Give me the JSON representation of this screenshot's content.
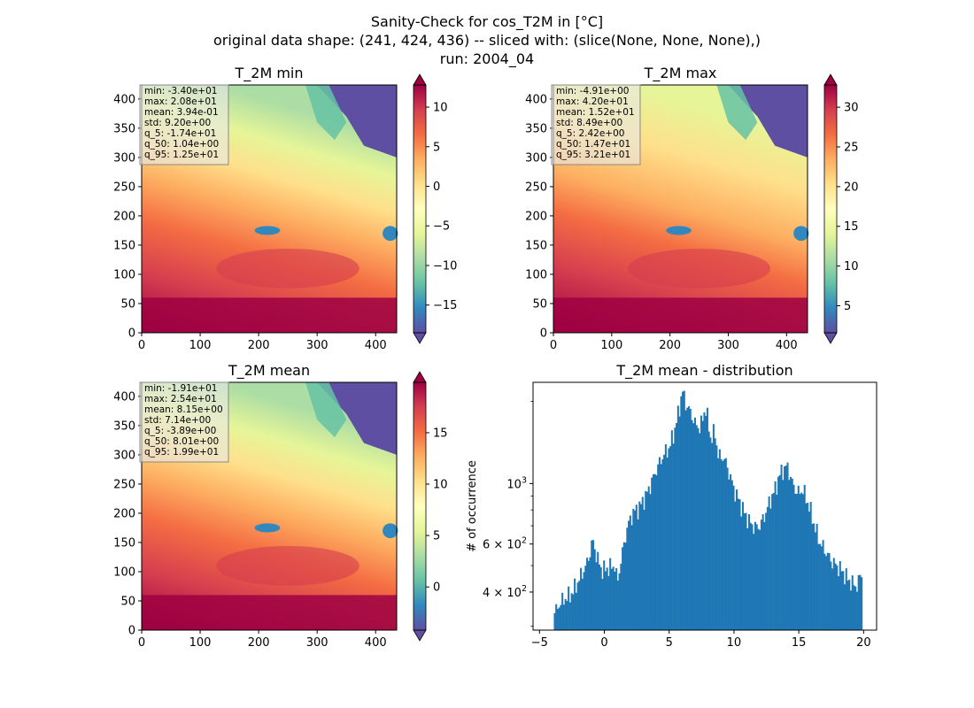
{
  "figure": {
    "title_lines": [
      "Sanity-Check for cos_T2M in [°C]",
      "original data shape: (241, 424, 436) -- sliced with: (slice(None, None, None),)",
      "run: 2004_04"
    ]
  },
  "colormap": {
    "name": "Spectral_r",
    "stops": [
      "#5e4fa2",
      "#3288bd",
      "#66c2a5",
      "#abdda4",
      "#e6f598",
      "#ffffbf",
      "#fee08b",
      "#fdae61",
      "#f46d43",
      "#d53e4f",
      "#9e0142"
    ]
  },
  "panels": [
    {
      "title": "T_2M min",
      "x_ticks": [
        "0",
        "100",
        "200",
        "300",
        "400"
      ],
      "y_ticks": [
        "0",
        "50",
        "100",
        "150",
        "200",
        "250",
        "300",
        "350",
        "400"
      ],
      "stats": [
        "min: -3.40e+01",
        "max: 2.08e+01",
        "mean: 3.94e-01",
        "std: 9.20e+00",
        "q_5: -1.74e+01",
        "q_50: 1.04e+00",
        "q_95: 1.25e+01"
      ],
      "colorbar_ticks": [
        "10",
        "5",
        "0",
        "−5",
        "−10",
        "−15"
      ],
      "colorbar_range": [
        -18.5,
        12.8
      ],
      "colorbar_tick_values": [
        10,
        5,
        0,
        -5,
        -10,
        -15
      ]
    },
    {
      "title": "T_2M max",
      "x_ticks": [
        "0",
        "100",
        "200",
        "300",
        "400"
      ],
      "y_ticks": [
        "0",
        "50",
        "100",
        "150",
        "200",
        "250",
        "300",
        "350",
        "400"
      ],
      "stats": [
        "min: -4.91e+00",
        "max: 4.20e+01",
        "mean: 1.52e+01",
        "std: 8.49e+00",
        "q_5: 2.42e+00",
        "q_50: 1.47e+01",
        "q_95: 3.21e+01"
      ],
      "colorbar_ticks": [
        "30",
        "25",
        "20",
        "15",
        "10",
        "5"
      ],
      "colorbar_range": [
        1.6,
        32.8
      ],
      "colorbar_tick_values": [
        30,
        25,
        20,
        15,
        10,
        5
      ]
    },
    {
      "title": "T_2M mean",
      "x_ticks": [
        "0",
        "100",
        "200",
        "300",
        "400"
      ],
      "y_ticks": [
        "0",
        "50",
        "100",
        "150",
        "200",
        "250",
        "300",
        "350",
        "400"
      ],
      "stats": [
        "min: -1.91e+01",
        "max: 2.54e+01",
        "mean: 8.15e+00",
        "std: 7.14e+00",
        "q_5: -3.89e+00",
        "q_50: 8.01e+00",
        "q_95: 1.99e+01"
      ],
      "colorbar_ticks": [
        "15",
        "10",
        "5",
        "0"
      ],
      "colorbar_range": [
        -4.2,
        19.9
      ],
      "colorbar_tick_values": [
        15,
        10,
        5,
        0
      ]
    }
  ],
  "histogram": {
    "title": "T_2M mean - distribution",
    "ylabel": "# of occurrence",
    "x_ticks": [
      "−5",
      "0",
      "5",
      "10",
      "15",
      "20"
    ],
    "x_tick_values": [
      -5,
      0,
      5,
      10,
      15,
      20
    ],
    "y_tick_labels": [
      {
        "value": 1000,
        "base": "10",
        "exp": "3"
      },
      {
        "value": 600,
        "base": "6 × 10",
        "exp": "2"
      },
      {
        "value": 400,
        "base": "4 × 10",
        "exp": "2"
      }
    ],
    "bar_color": "#1f77b4"
  },
  "chart_data": {
    "type": "bar",
    "title": "T_2M mean - distribution",
    "xlabel": "",
    "ylabel": "# of occurrence",
    "y_scale": "log",
    "xlim": [
      -5.5,
      21
    ],
    "ylim": [
      290,
      2350
    ],
    "grid": false,
    "anchors": [
      [
        -3.9,
        330
      ],
      [
        -3.5,
        360
      ],
      [
        -3.0,
        380
      ],
      [
        -2.6,
        390
      ],
      [
        -2.2,
        420
      ],
      [
        -1.8,
        460
      ],
      [
        -1.4,
        500
      ],
      [
        -1.1,
        560
      ],
      [
        -0.9,
        620
      ],
      [
        -0.6,
        540
      ],
      [
        -0.2,
        480
      ],
      [
        0.3,
        490
      ],
      [
        0.8,
        500
      ],
      [
        1.0,
        430
      ],
      [
        1.4,
        560
      ],
      [
        1.8,
        700
      ],
      [
        2.2,
        780
      ],
      [
        2.7,
        820
      ],
      [
        3.2,
        900
      ],
      [
        3.6,
        1000
      ],
      [
        4.1,
        1150
      ],
      [
        4.6,
        1280
      ],
      [
        5.0,
        1350
      ],
      [
        5.4,
        1550
      ],
      [
        5.8,
        1900
      ],
      [
        6.0,
        2200
      ],
      [
        6.3,
        1950
      ],
      [
        6.7,
        1800
      ],
      [
        7.0,
        1650
      ],
      [
        7.4,
        1600
      ],
      [
        7.8,
        1900
      ],
      [
        8.2,
        1450
      ],
      [
        8.5,
        1550
      ],
      [
        8.8,
        1250
      ],
      [
        9.2,
        1250
      ],
      [
        9.6,
        1100
      ],
      [
        10.0,
        950
      ],
      [
        10.4,
        860
      ],
      [
        10.8,
        780
      ],
      [
        11.2,
        720
      ],
      [
        11.6,
        690
      ],
      [
        12.0,
        700
      ],
      [
        12.4,
        770
      ],
      [
        12.8,
        870
      ],
      [
        13.2,
        960
      ],
      [
        13.6,
        1100
      ],
      [
        14.1,
        1160
      ],
      [
        14.5,
        1000
      ],
      [
        14.9,
        920
      ],
      [
        15.3,
        950
      ],
      [
        15.8,
        820
      ],
      [
        16.2,
        700
      ],
      [
        16.6,
        610
      ],
      [
        17.1,
        560
      ],
      [
        17.5,
        520
      ],
      [
        17.9,
        500
      ],
      [
        18.3,
        480
      ],
      [
        18.7,
        450
      ],
      [
        19.1,
        430
      ],
      [
        19.5,
        420
      ],
      [
        19.8,
        470
      ]
    ]
  }
}
